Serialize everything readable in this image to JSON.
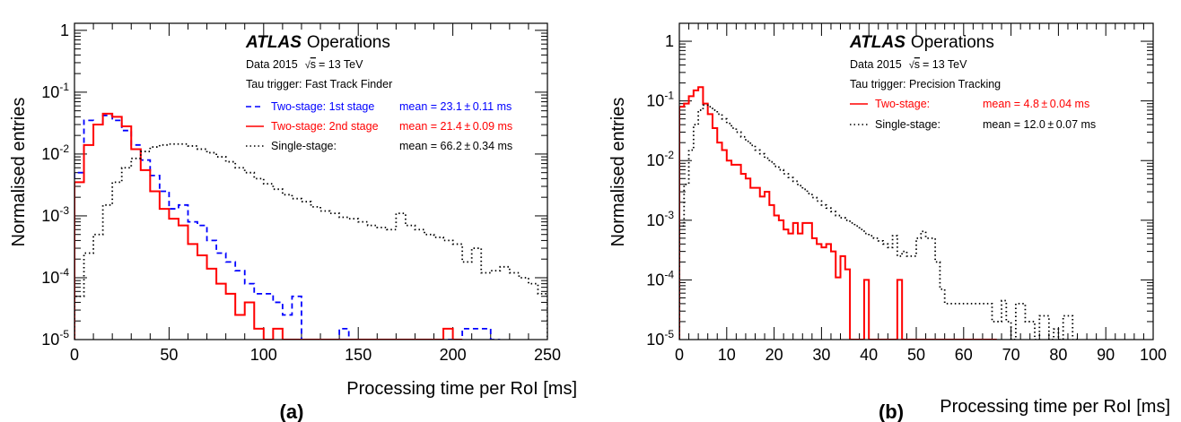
{
  "chart_data": [
    {
      "type": "histogram",
      "panel_label": "(a)",
      "xlabel": "Processing time per RoI [ms]",
      "ylabel": "Normalised entries",
      "xlim": [
        0,
        250
      ],
      "ylim": [
        1e-05,
        1.3
      ],
      "yscale": "log",
      "bin_width": 5,
      "xticks": [
        0,
        50,
        100,
        150,
        200,
        250
      ],
      "xtick_labels": [
        "0",
        "50",
        "100",
        "150",
        "200",
        "250"
      ],
      "ytick_labels": [
        {
          "base": "1",
          "exp": "",
          "value": 1
        },
        {
          "base": "10",
          "exp": "-1",
          "value": 0.1
        },
        {
          "base": "10",
          "exp": "-2",
          "value": 0.01
        },
        {
          "base": "10",
          "exp": "-3",
          "value": 0.001
        },
        {
          "base": "10",
          "exp": "-4",
          "value": 0.0001
        },
        {
          "base": "10",
          "exp": "-5",
          "value": 1e-05
        }
      ],
      "experiment": "ATLAS",
      "experiment_suffix": "Operations",
      "info_data": "Data 2015",
      "info_energy": "= 13 TeV",
      "info_sqrt": "s",
      "info_trigger": "Tau trigger: Fast Track Finder",
      "series": [
        {
          "name": "Two-stage: 1st stage",
          "mean_label": "mean = 23.1 ± 0.11 ms",
          "color": "#0000ff",
          "linestyle": "dashed",
          "edges": [
            0,
            5,
            10,
            15,
            20,
            25,
            30,
            35,
            40,
            45,
            50,
            55,
            60,
            65,
            70,
            75,
            80,
            85,
            90,
            95,
            100,
            105,
            110,
            115,
            120,
            125,
            140,
            145,
            150,
            205,
            210,
            220,
            225
          ],
          "values": [
            0.005,
            0.035,
            0.03,
            0.042,
            0.035,
            0.024,
            0.014,
            0.008,
            0.0045,
            0.0025,
            0.0013,
            0.0015,
            0.0008,
            0.0007,
            0.0004,
            0.00025,
            0.00018,
            0.00013,
            8e-05,
            5.5e-05,
            5.5e-05,
            4e-05,
            2.5e-05,
            5e-05,
            1e-05,
            1e-05,
            1.5e-05,
            1e-05,
            1e-05,
            1.5e-05,
            1.5e-05,
            1e-05
          ]
        },
        {
          "name": "Two-stage: 2nd stage",
          "mean_label": "mean = 21.4 ± 0.09 ms",
          "color": "#ff0000",
          "linestyle": "solid",
          "edges": [
            0,
            5,
            10,
            15,
            20,
            25,
            30,
            35,
            40,
            45,
            50,
            55,
            60,
            65,
            70,
            75,
            80,
            85,
            90,
            95,
            100,
            105,
            110,
            115,
            120,
            195,
            200,
            205
          ],
          "values": [
            0.0035,
            0.014,
            0.03,
            0.045,
            0.04,
            0.028,
            0.012,
            0.0055,
            0.0025,
            0.0013,
            0.0009,
            0.0007,
            0.00035,
            0.00023,
            0.00014,
            8e-05,
            5.5e-05,
            2.5e-05,
            4e-05,
            1.5e-05,
            1e-05,
            1.5e-05,
            1e-05,
            1e-05,
            1e-05,
            1.5e-05,
            1e-05
          ]
        },
        {
          "name": "Single-stage:",
          "mean_label": "mean = 66.2 ± 0.34 ms",
          "color": "#000000",
          "linestyle": "dotted",
          "edges": [
            0,
            5,
            10,
            15,
            20,
            25,
            30,
            35,
            40,
            45,
            50,
            55,
            60,
            65,
            70,
            75,
            80,
            85,
            90,
            95,
            100,
            105,
            110,
            115,
            120,
            125,
            130,
            135,
            140,
            145,
            150,
            155,
            160,
            165,
            170,
            175,
            180,
            185,
            190,
            195,
            200,
            205,
            210,
            215,
            220,
            225,
            230,
            235,
            240,
            245,
            250
          ],
          "values": [
            5e-05,
            0.00025,
            0.0005,
            0.0015,
            0.0035,
            0.006,
            0.0085,
            0.011,
            0.013,
            0.014,
            0.0145,
            0.0145,
            0.0135,
            0.012,
            0.0105,
            0.009,
            0.0075,
            0.006,
            0.005,
            0.004,
            0.0033,
            0.0027,
            0.0022,
            0.0019,
            0.0017,
            0.0014,
            0.0012,
            0.0011,
            0.00095,
            0.0009,
            0.0008,
            0.0007,
            0.00065,
            0.0006,
            0.0011,
            0.0007,
            0.0006,
            0.0005,
            0.00045,
            0.0004,
            0.00035,
            0.00018,
            0.0003,
            0.00012,
            0.00013,
            0.00015,
            0.00012,
            0.0001,
            8e-05,
            5.5e-05
          ]
        }
      ]
    },
    {
      "type": "histogram",
      "panel_label": "(b)",
      "xlabel": "Processing time per RoI [ms]",
      "ylabel": "Normalised entries",
      "xlim": [
        0,
        100
      ],
      "ylim": [
        1e-05,
        2.0
      ],
      "yscale": "log",
      "bin_width": 1,
      "xticks": [
        0,
        10,
        20,
        30,
        40,
        50,
        60,
        70,
        80,
        90,
        100
      ],
      "xtick_labels": [
        "0",
        "10",
        "20",
        "30",
        "40",
        "50",
        "60",
        "70",
        "80",
        "90",
        "100"
      ],
      "ytick_labels": [
        {
          "base": "1",
          "exp": "",
          "value": 1
        },
        {
          "base": "10",
          "exp": "-1",
          "value": 0.1
        },
        {
          "base": "10",
          "exp": "-2",
          "value": 0.01
        },
        {
          "base": "10",
          "exp": "-3",
          "value": 0.001
        },
        {
          "base": "10",
          "exp": "-4",
          "value": 0.0001
        },
        {
          "base": "10",
          "exp": "-5",
          "value": 1e-05
        }
      ],
      "experiment": "ATLAS",
      "experiment_suffix": "Operations",
      "info_data": "Data 2015",
      "info_energy": "= 13 TeV",
      "info_sqrt": "s",
      "info_trigger": "Tau trigger: Precision Tracking",
      "series": [
        {
          "name": "Two-stage:",
          "mean_label": "mean = 4.8 ± 0.04 ms",
          "color": "#ff0000",
          "linestyle": "solid",
          "edges": [
            0,
            1,
            2,
            3,
            4,
            5,
            6,
            7,
            8,
            9,
            10,
            11,
            12,
            13,
            14,
            15,
            16,
            17,
            18,
            19,
            20,
            21,
            22,
            23,
            24,
            25,
            26,
            27,
            28,
            29,
            30,
            31,
            32,
            33,
            34,
            35,
            36,
            37,
            38,
            39,
            40,
            41,
            42,
            43,
            44,
            45,
            46,
            47,
            48,
            49,
            50,
            51,
            52,
            53,
            54,
            55,
            56,
            57,
            58,
            59,
            60,
            61,
            62,
            63,
            64,
            65,
            66,
            67
          ],
          "values": [
            0.08,
            0.09,
            0.12,
            0.15,
            0.17,
            0.09,
            0.06,
            0.035,
            0.02,
            0.015,
            0.01,
            0.0085,
            0.0085,
            0.006,
            0.005,
            0.0035,
            0.0035,
            0.0025,
            0.003,
            0.0018,
            0.0012,
            0.001,
            0.0007,
            0.0006,
            0.0009,
            0.0006,
            0.0009,
            0.0009,
            0.0005,
            0.0004,
            0.00035,
            0.0004,
            0.0003,
            0.00011,
            0.00025,
            0.00015,
            1e-05,
            1e-05,
            1e-05,
            0.0001,
            1e-05,
            1e-05,
            1e-05,
            1e-05,
            1e-05,
            1e-05,
            0.0001,
            1e-05,
            1e-05,
            1e-05,
            1e-05,
            1e-05,
            1e-05,
            1e-05,
            1e-05,
            1e-05,
            1e-05,
            1e-05,
            1e-05,
            1e-05,
            1e-05,
            1e-05,
            1e-05,
            1e-05,
            1e-05,
            1e-05,
            1e-05
          ]
        },
        {
          "name": "Single-stage:",
          "mean_label": "mean = 12.0 ± 0.07 ms",
          "color": "#000000",
          "linestyle": "dotted",
          "edges": [
            0,
            1,
            2,
            3,
            4,
            5,
            6,
            7,
            8,
            9,
            10,
            11,
            12,
            13,
            14,
            15,
            16,
            17,
            18,
            19,
            20,
            21,
            22,
            23,
            24,
            25,
            26,
            27,
            28,
            29,
            30,
            31,
            32,
            33,
            34,
            35,
            36,
            37,
            38,
            39,
            40,
            41,
            42,
            43,
            44,
            45,
            46,
            47,
            48,
            49,
            50,
            51,
            52,
            53,
            54,
            55,
            56,
            57,
            58,
            59,
            60,
            61,
            62,
            63,
            64,
            65,
            66,
            67,
            68,
            69,
            70,
            71,
            72,
            73,
            74,
            75,
            76,
            77,
            78,
            79,
            80,
            81,
            82,
            83,
            84
          ],
          "values": [
            0.0008,
            0.004,
            0.015,
            0.04,
            0.07,
            0.085,
            0.08,
            0.07,
            0.06,
            0.05,
            0.042,
            0.035,
            0.03,
            0.025,
            0.021,
            0.018,
            0.015,
            0.013,
            0.011,
            0.0095,
            0.008,
            0.007,
            0.006,
            0.0052,
            0.0045,
            0.0038,
            0.0033,
            0.0028,
            0.0024,
            0.0021,
            0.0018,
            0.0016,
            0.0014,
            0.0012,
            0.0011,
            0.001,
            0.0009,
            0.0008,
            0.0007,
            0.0006,
            0.00055,
            0.0005,
            0.00045,
            0.0004,
            0.00035,
            0.00055,
            0.00025,
            0.0003,
            0.00025,
            0.00025,
            0.0005,
            0.00065,
            0.0005,
            0.0005,
            0.0002,
            7e-05,
            4e-05,
            4e-05,
            4e-05,
            4e-05,
            4e-05,
            4e-05,
            4e-05,
            4e-05,
            4e-05,
            4e-05,
            2e-05,
            2e-05,
            4.5e-05,
            2e-05,
            1e-05,
            4e-05,
            4e-05,
            2e-05,
            2e-05,
            1e-05,
            2.5e-05,
            2.5e-05,
            1e-05,
            1.5e-05,
            1e-05,
            2.5e-05,
            2.5e-05,
            1e-05
          ]
        }
      ]
    }
  ]
}
